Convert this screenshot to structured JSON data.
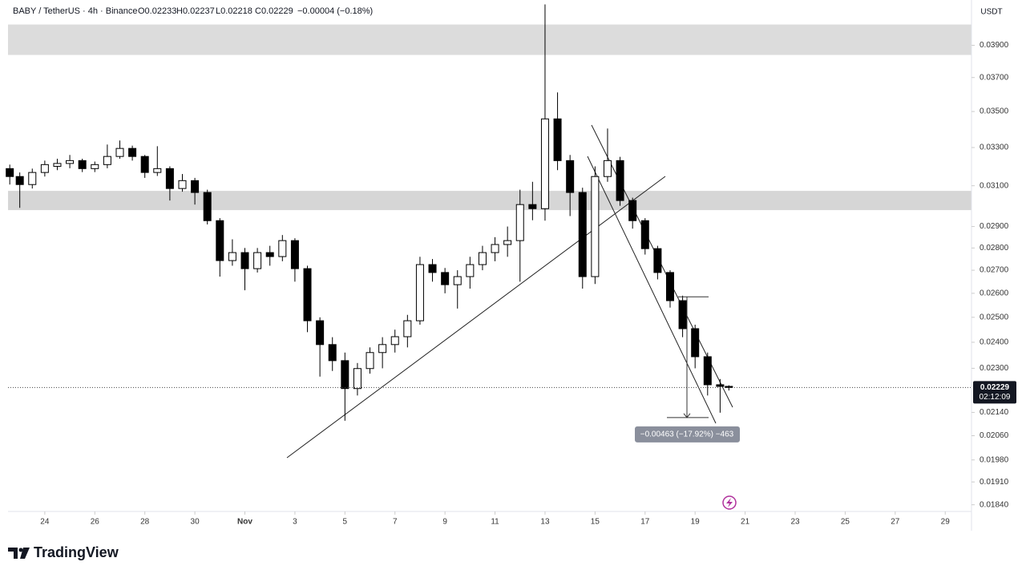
{
  "header": {
    "symbol": "BABY / TetherUS · 4h · Binance",
    "open": "O0.02233",
    "high": "H0.02237",
    "low": "L0.02218",
    "close": "C0.02229",
    "change": "−0.00004 (−0.18%)",
    "currency": "USDT"
  },
  "footer": {
    "brand": "TradingView"
  },
  "chart_data": {
    "type": "candlestick",
    "log_scale": true,
    "ylim": [
      0.0182,
      0.042
    ],
    "xlim": [
      22.53,
      61.05
    ],
    "yticks": [
      {
        "value": 0.039,
        "label": "0.03900"
      },
      {
        "value": 0.037,
        "label": "0.03700"
      },
      {
        "value": 0.035,
        "label": "0.03500"
      },
      {
        "value": 0.033,
        "label": "0.03300"
      },
      {
        "value": 0.031,
        "label": "0.03100"
      },
      {
        "value": 0.029,
        "label": "0.02900"
      },
      {
        "value": 0.028,
        "label": "0.02800"
      },
      {
        "value": 0.027,
        "label": "0.02700"
      },
      {
        "value": 0.026,
        "label": "0.02600"
      },
      {
        "value": 0.025,
        "label": "0.02500"
      },
      {
        "value": 0.024,
        "label": "0.02400"
      },
      {
        "value": 0.023,
        "label": "0.02300"
      },
      {
        "value": 0.0214,
        "label": "0.02140"
      },
      {
        "value": 0.0206,
        "label": "0.02060"
      },
      {
        "value": 0.0198,
        "label": "0.01980"
      },
      {
        "value": 0.0191,
        "label": "0.01910"
      },
      {
        "value": 0.0184,
        "label": "0.01840"
      }
    ],
    "xticks": [
      24,
      26,
      28,
      30,
      {
        "value": 32,
        "label": "Nov"
      },
      {
        "value": 34,
        "label": "3"
      },
      {
        "value": 36,
        "label": "5"
      },
      {
        "value": 38,
        "label": "7"
      },
      {
        "value": 40,
        "label": "9"
      },
      {
        "value": 42,
        "label": "11"
      },
      {
        "value": 44,
        "label": "13"
      },
      {
        "value": 46,
        "label": "15"
      },
      {
        "value": 48,
        "label": "17"
      },
      {
        "value": 50,
        "label": "19"
      },
      {
        "value": 52,
        "label": "21"
      },
      {
        "value": 54,
        "label": "23"
      },
      {
        "value": 56,
        "label": "25"
      },
      {
        "value": 58,
        "label": "27"
      },
      {
        "value": 60,
        "label": "29"
      }
    ],
    "up_color": "#ffffff",
    "down_color": "#000000",
    "wick_color": "#000000",
    "zones": [
      {
        "top": 0.04035,
        "bottom": 0.03839,
        "color": "#dcdcdc"
      },
      {
        "top": 0.03074,
        "bottom": 0.02979,
        "color": "#d6d6d6"
      }
    ],
    "countdown": "02:12:09",
    "measure": {
      "from": 0.02585,
      "to": 0.02122,
      "label": "−0.00463 (−17.92%) −463"
    },
    "candles": {
      "x": [
        22.6,
        23.0,
        23.5,
        24.0,
        24.5,
        25.0,
        25.5,
        26.0,
        26.5,
        27.0,
        27.5,
        28.0,
        28.5,
        29.0,
        29.5,
        30.0,
        30.5,
        31.0,
        31.5,
        32.0,
        32.5,
        33.0,
        33.5,
        34.0,
        34.5,
        35.0,
        35.5,
        36.0,
        36.5,
        37.0,
        37.5,
        38.0,
        38.5,
        39.0,
        39.5,
        40.0,
        40.5,
        41.0,
        41.5,
        42.0,
        42.5,
        43.0,
        43.5,
        44.0,
        44.5,
        45.0,
        45.5,
        46.0,
        46.5,
        47.0,
        47.5,
        48.0,
        48.5,
        49.0,
        49.5,
        50.0,
        50.5,
        51.0,
        51.35
      ],
      "open": [
        0.03188,
        0.03147,
        0.03106,
        0.03168,
        0.032,
        0.03215,
        0.0323,
        0.03188,
        0.03209,
        0.03252,
        0.03295,
        0.03252,
        0.03168,
        0.03188,
        0.03086,
        0.03126,
        0.03066,
        0.02928,
        0.02743,
        0.02779,
        0.02707,
        0.02779,
        0.02761,
        0.02834,
        0.02707,
        0.02486,
        0.02391,
        0.02329,
        0.02225,
        0.02299,
        0.0236,
        0.02391,
        0.02422,
        0.02486,
        0.02725,
        0.0269,
        0.02637,
        0.02672,
        0.02725,
        0.02779,
        0.02816,
        0.02834,
        0.03006,
        0.02986,
        0.03458,
        0.0323,
        0.03066,
        0.02672,
        0.03147,
        0.0323,
        0.03026,
        0.02928,
        0.02797,
        0.0269,
        0.02569,
        0.02454,
        0.02344,
        0.02239,
        0.02233
      ],
      "high": [
        0.03209,
        0.03168,
        0.03188,
        0.0323,
        0.0324,
        0.0326,
        0.0324,
        0.03225,
        0.03316,
        0.03338,
        0.0331,
        0.0326,
        0.03307,
        0.032,
        0.0316,
        0.0314,
        0.0308,
        0.0294,
        0.0284,
        0.028,
        0.028,
        0.0281,
        0.0286,
        0.02845,
        0.0272,
        0.025,
        0.0242,
        0.0236,
        0.0232,
        0.0238,
        0.0242,
        0.0245,
        0.0251,
        0.0276,
        0.0275,
        0.0271,
        0.027,
        0.0276,
        0.0281,
        0.0285,
        0.029,
        0.0308,
        0.0312,
        0.0417,
        0.03611,
        0.0326,
        0.0309,
        0.032,
        0.03404,
        0.0325,
        0.0304,
        0.0294,
        0.0281,
        0.027,
        0.0259,
        0.0247,
        0.0236,
        0.0226,
        0.02237
      ],
      "low": [
        0.03106,
        0.0299,
        0.03086,
        0.03147,
        0.0318,
        0.0319,
        0.0317,
        0.0317,
        0.0319,
        0.0324,
        0.0323,
        0.0314,
        0.0315,
        0.03026,
        0.0307,
        0.03006,
        0.0291,
        0.02672,
        0.0272,
        0.02613,
        0.0269,
        0.0272,
        0.0274,
        0.0265,
        0.0244,
        0.02269,
        0.0229,
        0.02111,
        0.022,
        0.0228,
        0.023,
        0.0236,
        0.0238,
        0.0247,
        0.0265,
        0.026,
        0.02536,
        0.0262,
        0.027,
        0.0274,
        0.0276,
        0.0265,
        0.0293,
        0.02928,
        0.0318,
        0.0295,
        0.0262,
        0.0264,
        0.0312,
        0.03,
        0.0289,
        0.0277,
        0.0266,
        0.0254,
        0.0242,
        0.023,
        0.022,
        0.02139,
        0.02218
      ],
      "close": [
        0.03147,
        0.03106,
        0.03168,
        0.03209,
        0.03215,
        0.0323,
        0.03188,
        0.03209,
        0.03252,
        0.03295,
        0.03252,
        0.03168,
        0.03188,
        0.03086,
        0.03126,
        0.03066,
        0.02928,
        0.02743,
        0.02779,
        0.02707,
        0.02779,
        0.02761,
        0.02834,
        0.02707,
        0.02486,
        0.02391,
        0.02329,
        0.02225,
        0.02299,
        0.0236,
        0.02391,
        0.02422,
        0.02486,
        0.02725,
        0.0269,
        0.02637,
        0.02672,
        0.02725,
        0.02779,
        0.02816,
        0.02834,
        0.03006,
        0.02986,
        0.03458,
        0.0323,
        0.03066,
        0.02672,
        0.03147,
        0.0323,
        0.03026,
        0.02928,
        0.02797,
        0.0269,
        0.02569,
        0.02454,
        0.02344,
        0.02239,
        0.02233,
        0.02229
      ]
    }
  }
}
